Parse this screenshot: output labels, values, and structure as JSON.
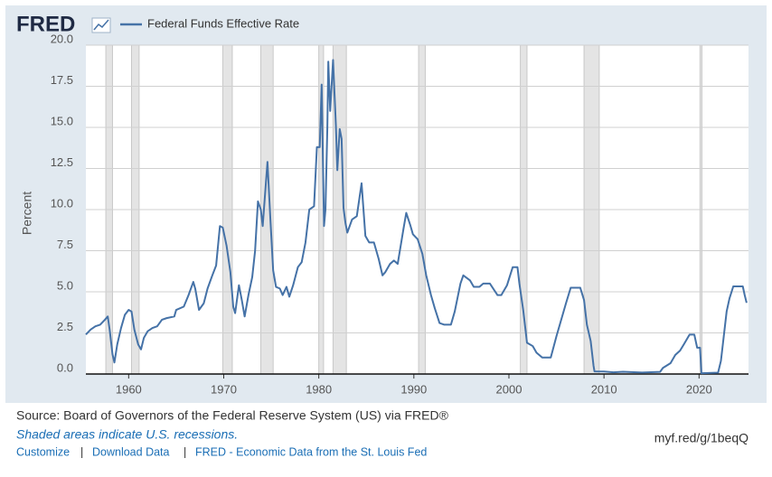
{
  "logo": "FRED",
  "chart_data": {
    "type": "line",
    "ylabel": "Percent",
    "x": [
      1955.5,
      1956,
      1956.5,
      1957,
      1957.5,
      1957.8,
      1958.0,
      1958.3,
      1958.5,
      1958.8,
      1959.2,
      1959.6,
      1960.0,
      1960.3,
      1960.6,
      1961.0,
      1961.3,
      1961.6,
      1962,
      1962.5,
      1963,
      1963.5,
      1964,
      1964.8,
      1965,
      1965.8,
      1966.3,
      1966.8,
      1967.0,
      1967.4,
      1967.9,
      1968.3,
      1968.8,
      1969.2,
      1969.6,
      1969.9,
      1970.3,
      1970.7,
      1971.0,
      1971.2,
      1971.6,
      1971.9,
      1972.2,
      1972.6,
      1973.0,
      1973.3,
      1973.6,
      1973.9,
      1974.1,
      1974.6,
      1974.9,
      1975.2,
      1975.5,
      1975.9,
      1976.2,
      1976.6,
      1976.9,
      1977.3,
      1977.8,
      1978.2,
      1978.6,
      1979.0,
      1979.5,
      1979.8,
      1980.1,
      1980.3,
      1980.55,
      1980.7,
      1980.9,
      1981.0,
      1981.2,
      1981.5,
      1981.8,
      1981.95,
      1982.2,
      1982.4,
      1982.6,
      1982.8,
      1983.0,
      1983.5,
      1984.0,
      1984.5,
      1984.9,
      1985.3,
      1985.8,
      1986.3,
      1986.7,
      1987.0,
      1987.5,
      1987.9,
      1988.3,
      1988.9,
      1989.2,
      1989.6,
      1989.9,
      1990.4,
      1990.9,
      1991.3,
      1991.8,
      1992.2,
      1992.7,
      1993.2,
      1993.9,
      1994.3,
      1994.9,
      1995.2,
      1995.9,
      1996.3,
      1996.9,
      1997.3,
      1998.0,
      1998.8,
      1999.2,
      1999.8,
      2000.4,
      2000.9,
      2001.1,
      2001.5,
      2001.9,
      2002.5,
      2002.9,
      2003.5,
      2004.4,
      2005.0,
      2006.0,
      2006.5,
      2007.5,
      2007.9,
      2008.2,
      2008.6,
      2008.9,
      2009.0,
      2010.0,
      2011.0,
      2012.0,
      2014.0,
      2015.9,
      2016.2,
      2017.0,
      2017.5,
      2018.0,
      2018.5,
      2019.0,
      2019.5,
      2019.8,
      2020.1,
      2020.25,
      2022.0,
      2022.3,
      2022.6,
      2022.9,
      2023.2,
      2023.6,
      2024.6,
      2024.8,
      2025.0
    ],
    "series": [
      {
        "name": "Federal Funds Effective Rate",
        "color": "#4572a7",
        "values": [
          2.4,
          2.7,
          2.9,
          3.0,
          3.3,
          3.5,
          2.7,
          1.2,
          0.7,
          1.8,
          2.8,
          3.6,
          3.9,
          3.8,
          2.7,
          1.8,
          1.5,
          2.2,
          2.6,
          2.8,
          2.9,
          3.3,
          3.4,
          3.5,
          3.9,
          4.1,
          4.8,
          5.6,
          5.2,
          3.9,
          4.3,
          5.2,
          6.0,
          6.6,
          9.0,
          8.9,
          7.8,
          6.2,
          4.1,
          3.7,
          5.4,
          4.5,
          3.5,
          4.8,
          5.9,
          7.5,
          10.5,
          10.0,
          9.0,
          12.9,
          9.5,
          6.3,
          5.3,
          5.2,
          4.8,
          5.3,
          4.7,
          5.4,
          6.5,
          6.8,
          8.0,
          10.0,
          10.2,
          13.8,
          13.8,
          17.6,
          9.0,
          10.0,
          15.0,
          19.0,
          16.0,
          19.1,
          15.1,
          12.4,
          14.9,
          14.3,
          10.1,
          9.2,
          8.6,
          9.4,
          9.6,
          11.6,
          8.4,
          8.0,
          8.0,
          7.0,
          6.0,
          6.2,
          6.7,
          6.9,
          6.7,
          8.8,
          9.8,
          9.1,
          8.5,
          8.2,
          7.3,
          6.0,
          4.8,
          4.0,
          3.1,
          3.0,
          3.0,
          3.8,
          5.5,
          6.0,
          5.7,
          5.3,
          5.3,
          5.5,
          5.5,
          4.8,
          4.8,
          5.4,
          6.5,
          6.5,
          5.5,
          3.9,
          1.9,
          1.7,
          1.3,
          1.0,
          1.0,
          2.3,
          4.3,
          5.25,
          5.25,
          4.5,
          3.0,
          2.0,
          0.5,
          0.16,
          0.15,
          0.1,
          0.14,
          0.09,
          0.13,
          0.37,
          0.66,
          1.16,
          1.42,
          1.9,
          2.4,
          2.4,
          1.6,
          1.6,
          0.05,
          0.08,
          0.8,
          2.3,
          3.8,
          4.6,
          5.33,
          5.33,
          4.8,
          4.33
        ]
      }
    ],
    "recessions": [
      [
        1957.6,
        1958.3
      ],
      [
        1960.3,
        1961.1
      ],
      [
        1969.9,
        1970.9
      ],
      [
        1973.9,
        1975.2
      ],
      [
        1980.0,
        1980.5
      ],
      [
        1981.5,
        1982.9
      ],
      [
        1990.5,
        1991.2
      ],
      [
        2001.2,
        2001.9
      ],
      [
        2007.9,
        2009.5
      ],
      [
        2020.1,
        2020.3
      ]
    ],
    "xlim": [
      1955.5,
      2025.2
    ],
    "xticks": [
      1960,
      1970,
      1980,
      1990,
      2000,
      2010,
      2020
    ],
    "ylim": [
      0,
      20
    ],
    "yticks": [
      {
        "value": 0,
        "label": "0.0"
      },
      {
        "value": 2.5,
        "label": "2.5"
      },
      {
        "value": 5,
        "label": "5.0"
      },
      {
        "value": 7.5,
        "label": "7.5"
      },
      {
        "value": 10,
        "label": "10.0"
      },
      {
        "value": 12.5,
        "label": "12.5"
      },
      {
        "value": 15,
        "label": "15.0"
      },
      {
        "value": 17.5,
        "label": "17.5"
      },
      {
        "value": 20,
        "label": "20.0"
      }
    ],
    "grid": true
  },
  "footer": {
    "source": "Source: Board of Governors of the Federal Reserve System (US) via FRED®",
    "note": "Shaded areas indicate U.S. recessions.",
    "links": [
      "Customize",
      "Download Data",
      "FRED - Economic Data from the St. Louis Fed"
    ],
    "separator": "|",
    "short_url": "myf.red/g/1beqQ"
  }
}
